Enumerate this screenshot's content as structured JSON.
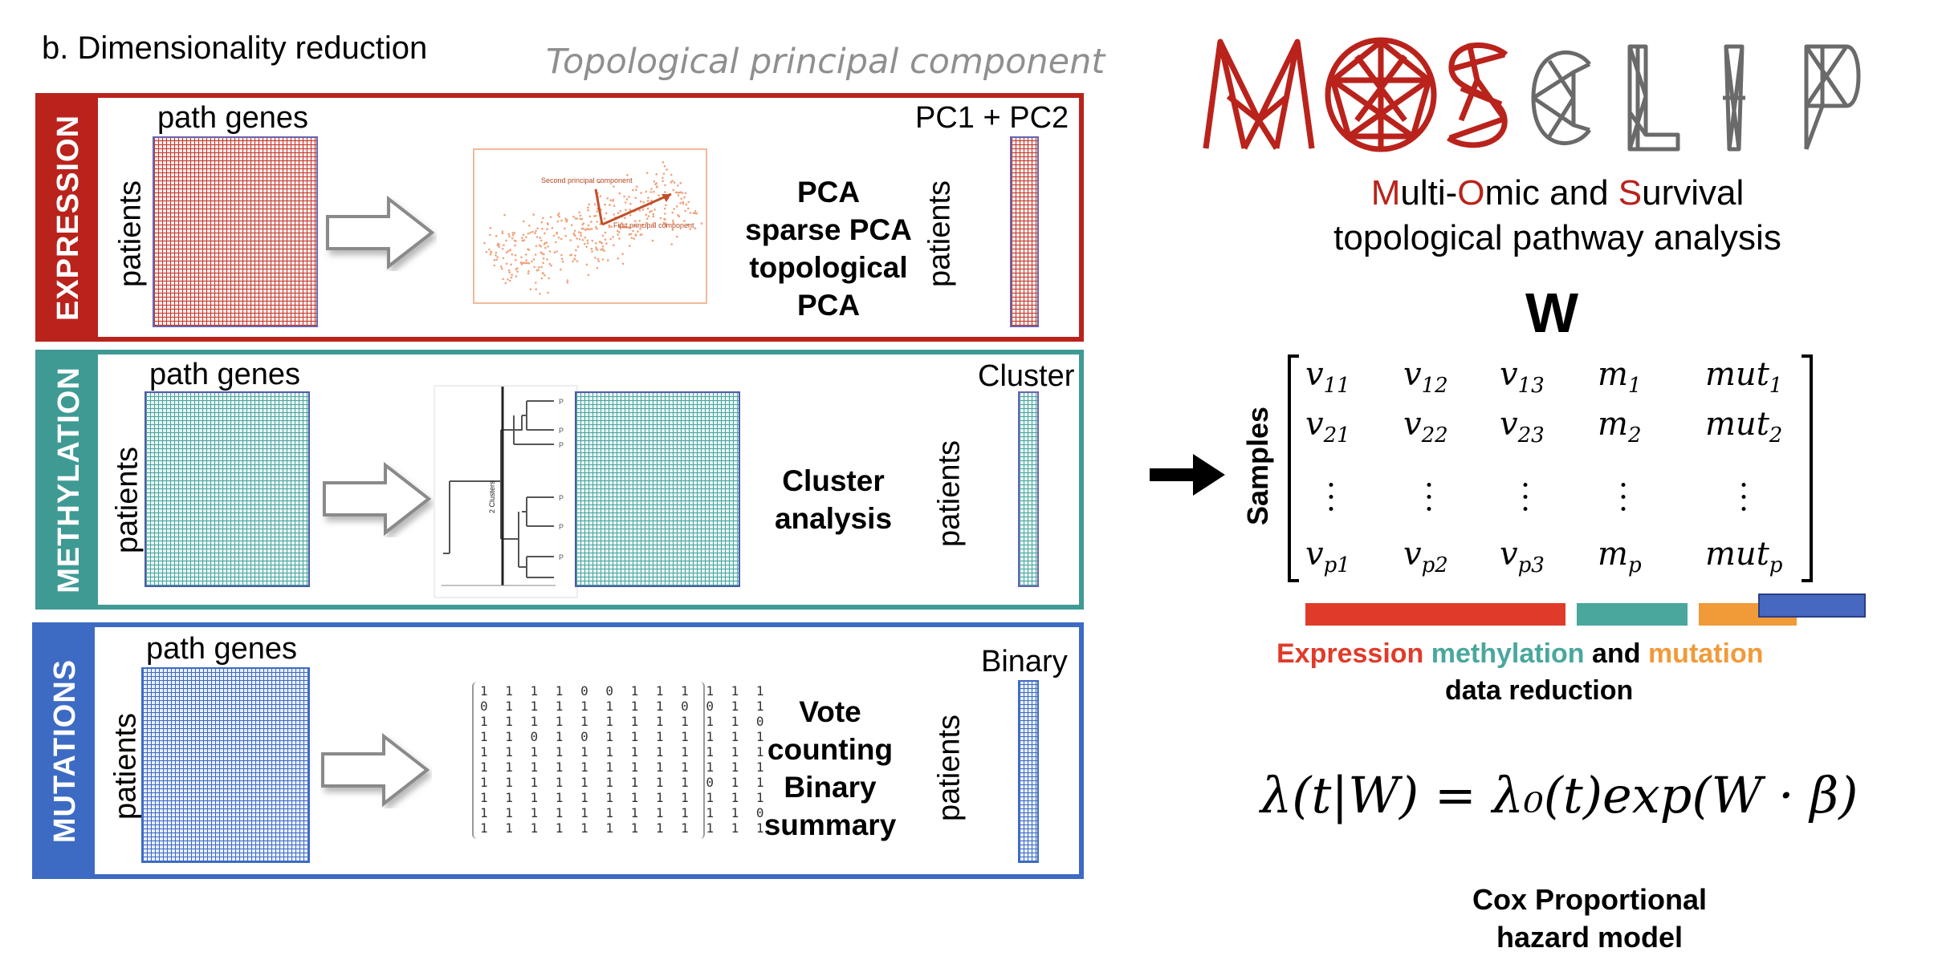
{
  "header": {
    "section_title": "b. Dimensionality reduction",
    "topological_title": "Topological principal component"
  },
  "panels": {
    "expression": {
      "side_label": "EXPRESSION",
      "color": "#b9231c",
      "grid_color": "#c0392b",
      "top_label": "path genes",
      "left_label": "patients",
      "methods": [
        "PCA",
        "sparse PCA",
        "topological",
        "PCA"
      ],
      "result_top_label": "PC1 + PC2",
      "result_left_label": "patients",
      "thumbnail": {
        "second_component_label": "Second principal component",
        "first_component_label": "First principal component"
      }
    },
    "methylation": {
      "side_label": "METHYLATION",
      "color": "#3f9a94",
      "grid_color": "#45a59d",
      "top_label": "path genes",
      "left_label": "patients",
      "methods": [
        "Cluster",
        "analysis"
      ],
      "result_top_label": "Cluster",
      "result_left_label": "patients",
      "thumbnail": {
        "clusters_label": "2 Clusters"
      }
    },
    "mutations": {
      "side_label": "MUTATIONS",
      "color": "#3d6bc4",
      "grid_color": "#3d6bc4",
      "top_label": "path genes",
      "left_label": "patients",
      "methods": [
        "Vote",
        "counting",
        "Binary",
        "summary"
      ],
      "result_top_label": "Binary",
      "result_left_label": "patients",
      "binary_matrix": [
        "1 1 1 1 0 0 1 1 1 1 1 1",
        "0 1 1 1 1 1 1 1 0 0 1 1",
        "1 1 1 1 1 1 1 1 1 1 1 0",
        "1 1 0 1 0 1 1 1 1 1 1 1",
        "1 1 1 1 1 1 1 1 1 1 1 1",
        "1 1 1 1 1 1 1 1 1 1 1 1",
        "1 1 1 1 1 1 1 1 1 0 1 1",
        "1 1 1 1 1 1 1 1 1 1 1 1",
        "1 1 1 1 1 1 1 1 1 1 1 0",
        "1 1 1 1 1 1 1 1 1 1 1 1"
      ]
    }
  },
  "logo": {
    "text": "MOSCLIP",
    "sub_line1_parts": [
      "M",
      "ulti-",
      "O",
      "mic and ",
      "S",
      "urvival"
    ],
    "sub_line2": "topological pathway analysis",
    "accent_color": "#b9231c",
    "grey_color": "#6a6a6a"
  },
  "matrix": {
    "name": "W",
    "row_label": "Samples",
    "rows": [
      [
        [
          "v",
          "11"
        ],
        [
          "v",
          "12"
        ],
        [
          "v",
          "13"
        ],
        [
          "m",
          "1"
        ],
        [
          "mut",
          "1"
        ]
      ],
      [
        [
          "v",
          "21"
        ],
        [
          "v",
          "22"
        ],
        [
          "v",
          "23"
        ],
        [
          "m",
          "2"
        ],
        [
          "mut",
          "2"
        ]
      ],
      [
        [
          "v",
          "p1"
        ],
        [
          "v",
          "p2"
        ],
        [
          "v",
          "p3"
        ],
        [
          "m",
          "p"
        ],
        [
          "mut",
          "p"
        ]
      ]
    ]
  },
  "legend": {
    "expression_word": "Expression",
    "methylation_word": "methylation",
    "and_word": "and",
    "mutation_word": "mutation",
    "line2": "data reduction",
    "expression_color": "#e03b2a",
    "methylation_color": "#4aa79d",
    "mutation_color": "#f19a38",
    "blue_color": "#4768c0"
  },
  "formula": "λ(t|W) = λ₀(t)exp(W · β)",
  "cox": {
    "line1": "Cox Proportional",
    "line2": "hazard model"
  }
}
